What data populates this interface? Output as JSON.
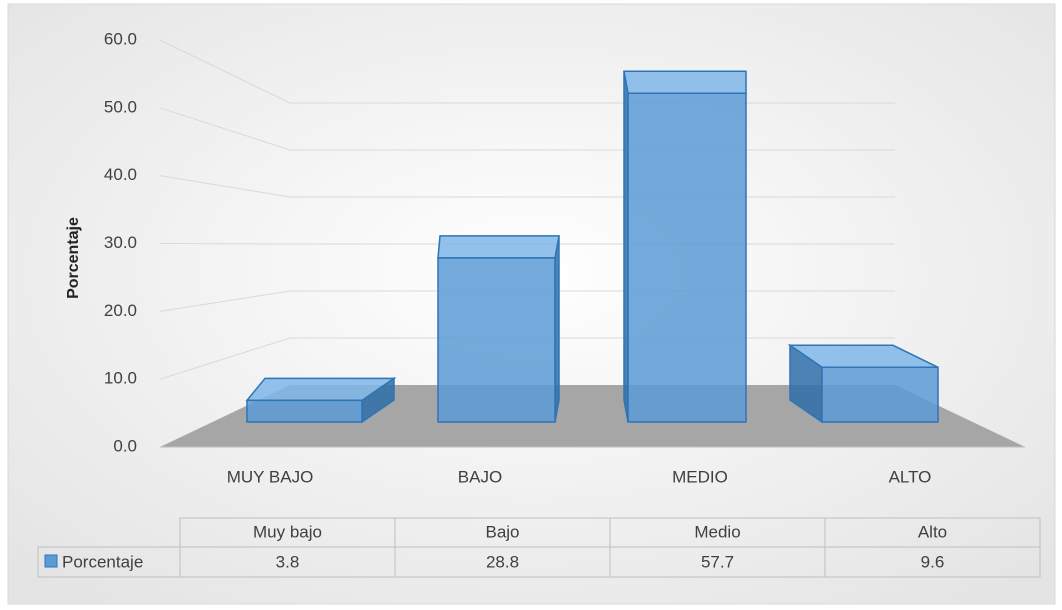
{
  "chart_data": {
    "type": "bar3d",
    "y_label": "Porcentaje",
    "categories": [
      "MUY BAJO",
      "BAJO",
      "MEDIO",
      "ALTO"
    ],
    "table_categories": [
      "Muy bajo",
      "Bajo",
      "Medio",
      "Alto"
    ],
    "series": [
      {
        "name": "Porcentaje",
        "color": "#5b9bd5",
        "values": [
          3.8,
          28.8,
          57.7,
          9.6
        ]
      }
    ],
    "ylim": [
      0,
      60
    ],
    "yticks": [
      {
        "value": 0,
        "label": "0.0"
      },
      {
        "value": 10,
        "label": "10.0"
      },
      {
        "value": 20,
        "label": "20.0"
      },
      {
        "value": 30,
        "label": "30.0"
      },
      {
        "value": 40,
        "label": "40.0"
      },
      {
        "value": 50,
        "label": "50.0"
      },
      {
        "value": 60,
        "label": "60.0"
      }
    ],
    "grid": true
  }
}
